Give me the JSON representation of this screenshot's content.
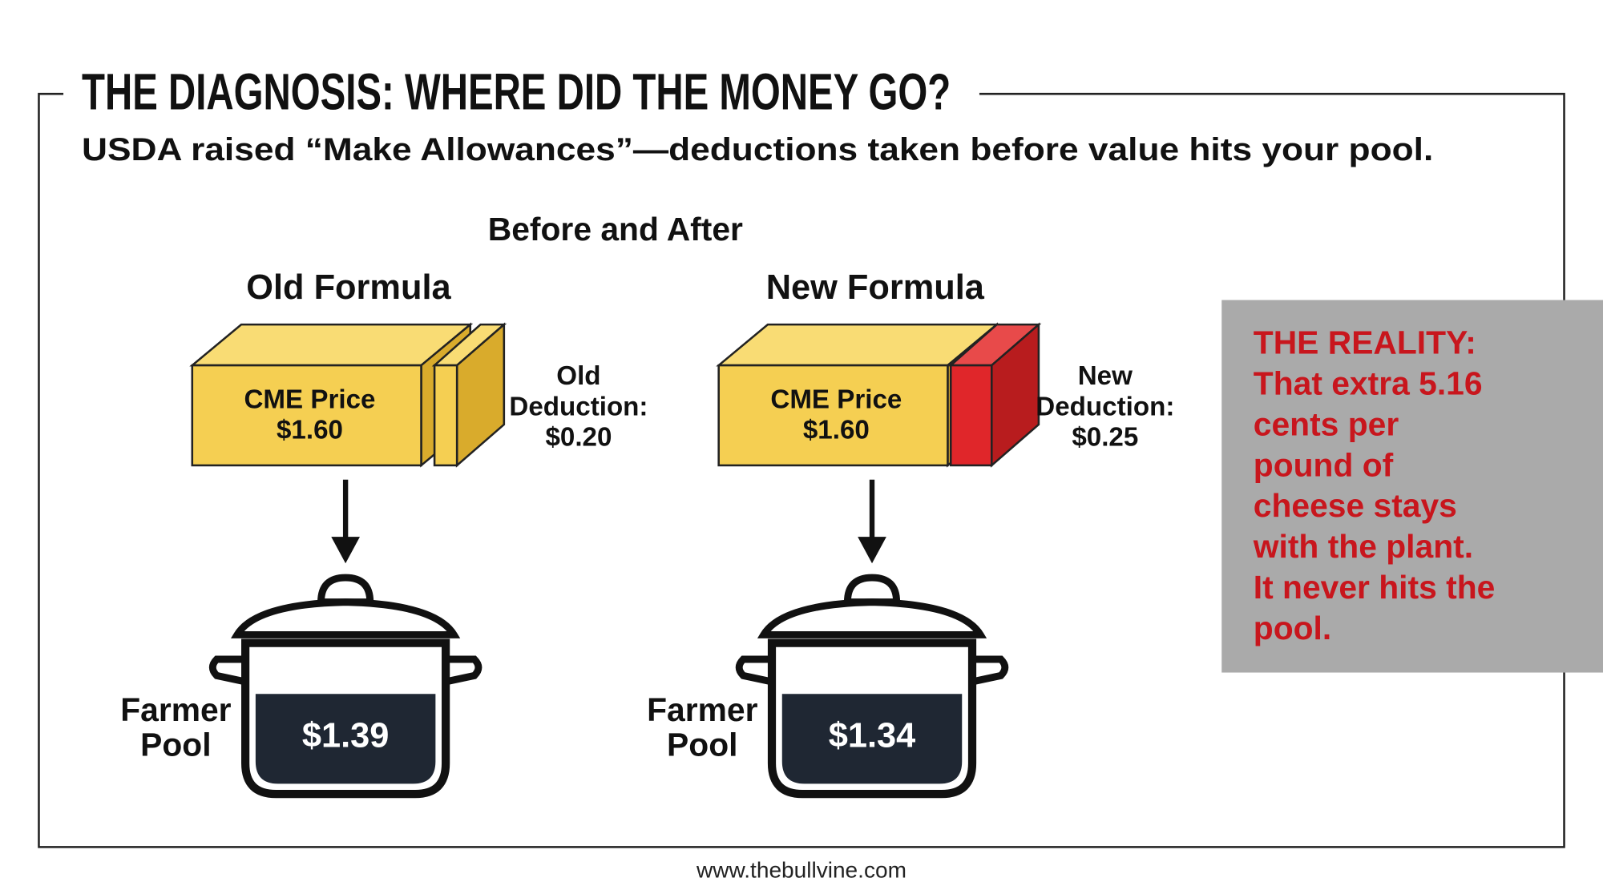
{
  "header": {
    "title": "THE DIAGNOSIS: WHERE DID THE MONEY GO?",
    "subtitle": "USDA raised “Make Allowances”—deductions taken before value hits your pool."
  },
  "diagram": {
    "heading": "Before and After",
    "panels": [
      {
        "title": "Old Formula",
        "block_label": [
          "CME Price",
          "$1.60"
        ],
        "deduction_label": [
          "Old",
          "Deduction:",
          "$0.20"
        ],
        "pool_label": [
          "Farmer",
          "Pool"
        ],
        "pool_value": "$1.39"
      },
      {
        "title": "New Formula",
        "block_label": [
          "CME Price",
          "$1.60"
        ],
        "deduction_label": [
          "New",
          "Deduction:",
          "$0.25"
        ],
        "pool_label": [
          "Farmer",
          "Pool"
        ],
        "pool_value": "$1.34"
      }
    ]
  },
  "callout": {
    "lines": [
      "THE REALITY:",
      "That extra 5.16",
      "cents per",
      "pound of",
      "cheese stays",
      "with the plant.",
      "It never hits the",
      "pool."
    ]
  },
  "footer": {
    "url": "www.thebullvine.com"
  }
}
